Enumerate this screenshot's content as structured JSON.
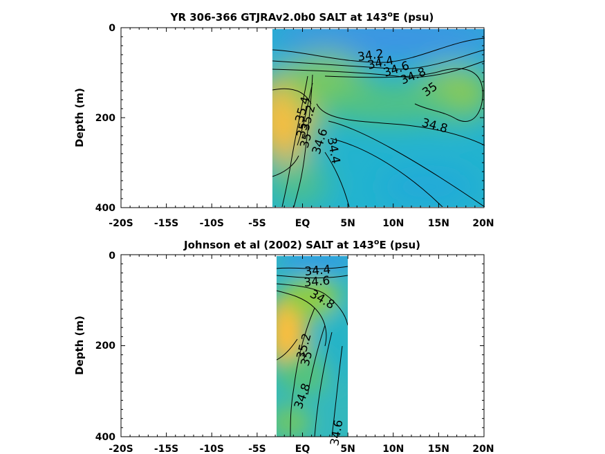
{
  "chart_data": [
    {
      "type": "heatmap",
      "title": "YR 306-366 GTJRAv2.0b0 SALT at 143",
      "title_sup": "o",
      "title_suffix": "E (psu)",
      "ylabel": "Depth (m)",
      "xlabel": "",
      "xlim": [
        -20,
        20
      ],
      "ylim": [
        400,
        0
      ],
      "x_ticks": [
        "-20S",
        "-15S",
        "-10S",
        "-5S",
        "EQ",
        "5N",
        "10N",
        "15N",
        "20N"
      ],
      "x_tick_values": [
        -20,
        -15,
        -10,
        -5,
        0,
        5,
        10,
        15,
        20
      ],
      "y_ticks": [
        "0",
        "200",
        "400"
      ],
      "y_tick_values": [
        0,
        200,
        400
      ],
      "data_extent_lat": [
        -3.3,
        20
      ],
      "colormap": [
        "#3e8ce6",
        "#1eb1d6",
        "#4cc08f",
        "#8dcc47",
        "#f6ba3c",
        "#fdc63e"
      ],
      "contour_labels": [
        "34.2",
        "34.4",
        "34.6",
        "34.8",
        "35",
        "35.4",
        "35.2",
        "35",
        "35",
        "34.6",
        "34.4",
        "34.8"
      ],
      "grid": false
    },
    {
      "type": "heatmap",
      "title": "Johnson et al (2002) SALT at 143",
      "title_sup": "o",
      "title_suffix": "E (psu)",
      "ylabel": "Depth (m)",
      "xlabel": "",
      "xlim": [
        -20,
        20
      ],
      "ylim": [
        400,
        0
      ],
      "x_ticks": [
        "-20S",
        "-15S",
        "-10S",
        "-5S",
        "EQ",
        "5N",
        "10N",
        "15N",
        "20N"
      ],
      "x_tick_values": [
        -20,
        -15,
        -10,
        -5,
        0,
        5,
        10,
        15,
        20
      ],
      "y_ticks": [
        "0",
        "200",
        "400"
      ],
      "y_tick_values": [
        0,
        200,
        400
      ],
      "data_extent_lat": [
        -2.8,
        5
      ],
      "colormap": [
        "#3e8ce6",
        "#1eb1d6",
        "#4cc08f",
        "#8dcc47",
        "#f6ba3c",
        "#fdc63e"
      ],
      "contour_labels": [
        "34.4",
        "34.6",
        "34.8",
        "35.2",
        "35",
        "34.8",
        "34.6"
      ],
      "grid": false
    }
  ]
}
